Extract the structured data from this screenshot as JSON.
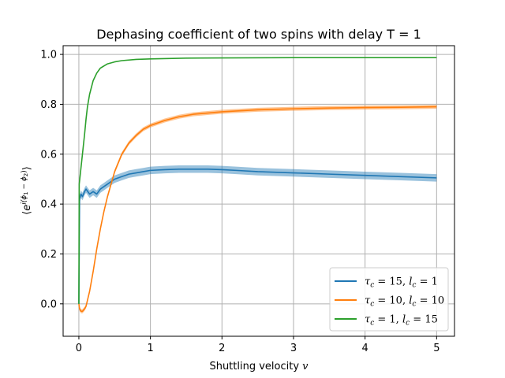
{
  "chart_data": {
    "type": "line",
    "title": "Dephasing coefficient of two spins with delay T = 1",
    "xlabel": "Shuttling velocity v",
    "ylabel": "⟨e^{i(φ₁ − φ₂)}⟩",
    "xlim": [
      -0.22,
      5.25
    ],
    "ylim": [
      -0.13,
      1.035
    ],
    "xticks": [
      0,
      1,
      2,
      3,
      4,
      5
    ],
    "xtick_labels": [
      "0",
      "1",
      "2",
      "3",
      "4",
      "5"
    ],
    "yticks": [
      0.0,
      0.2,
      0.4,
      0.6,
      0.8,
      1.0
    ],
    "ytick_labels": [
      "0.0",
      "0.2",
      "0.4",
      "0.6",
      "0.8",
      "1.0"
    ],
    "grid": true,
    "legend_position": "bottom-right",
    "series": [
      {
        "name": "τc = 15, lc = 1",
        "color": "#1f77b4",
        "band_halfwidth": 0.015,
        "x": [
          0,
          0.01,
          0.03,
          0.05,
          0.08,
          0.1,
          0.15,
          0.2,
          0.25,
          0.3,
          0.35,
          0.4,
          0.5,
          0.6,
          0.7,
          0.8,
          0.9,
          1.0,
          1.2,
          1.4,
          1.6,
          1.8,
          2.0,
          2.2,
          2.5,
          3.0,
          3.5,
          4.0,
          4.5,
          5.0
        ],
        "y": [
          0.0,
          0.42,
          0.44,
          0.43,
          0.45,
          0.46,
          0.44,
          0.45,
          0.44,
          0.46,
          0.47,
          0.48,
          0.5,
          0.51,
          0.52,
          0.525,
          0.53,
          0.535,
          0.538,
          0.54,
          0.54,
          0.54,
          0.538,
          0.535,
          0.53,
          0.525,
          0.52,
          0.515,
          0.51,
          0.505
        ]
      },
      {
        "name": "τc = 10, lc = 10",
        "color": "#ff7f0e",
        "band_halfwidth": 0.008,
        "x": [
          0,
          0.01,
          0.03,
          0.05,
          0.08,
          0.1,
          0.15,
          0.2,
          0.25,
          0.3,
          0.35,
          0.4,
          0.45,
          0.5,
          0.6,
          0.7,
          0.8,
          0.9,
          1.0,
          1.2,
          1.4,
          1.6,
          1.8,
          2.0,
          2.5,
          3.0,
          3.5,
          4.0,
          4.5,
          5.0
        ],
        "y": [
          0.0,
          -0.02,
          -0.03,
          -0.03,
          -0.02,
          -0.01,
          0.05,
          0.13,
          0.22,
          0.3,
          0.37,
          0.43,
          0.48,
          0.53,
          0.6,
          0.645,
          0.675,
          0.7,
          0.715,
          0.735,
          0.75,
          0.76,
          0.765,
          0.77,
          0.778,
          0.782,
          0.785,
          0.787,
          0.788,
          0.79
        ]
      },
      {
        "name": "τc = 1, lc = 15",
        "color": "#2ca02c",
        "band_halfwidth": 0.0,
        "x": [
          0,
          0.005,
          0.02,
          0.05,
          0.08,
          0.1,
          0.12,
          0.15,
          0.2,
          0.25,
          0.3,
          0.4,
          0.5,
          0.6,
          0.8,
          1.0,
          1.5,
          2.0,
          3.0,
          4.0,
          5.0
        ],
        "y": [
          0.0,
          0.48,
          0.52,
          0.6,
          0.68,
          0.74,
          0.79,
          0.84,
          0.895,
          0.925,
          0.945,
          0.962,
          0.97,
          0.975,
          0.98,
          0.982,
          0.985,
          0.986,
          0.987,
          0.987,
          0.987
        ]
      }
    ]
  },
  "legend": {
    "items": [
      {
        "symbol": "τ",
        "sub": "c",
        "text": " = 15, ",
        "sym2": "l",
        "sub2": "c",
        "text2": " = 1"
      },
      {
        "symbol": "τ",
        "sub": "c",
        "text": " = 10, ",
        "sym2": "l",
        "sub2": "c",
        "text2": " = 10"
      },
      {
        "symbol": "τ",
        "sub": "c",
        "text": " = 1, ",
        "sym2": "l",
        "sub2": "c",
        "text2": " = 15"
      }
    ]
  }
}
